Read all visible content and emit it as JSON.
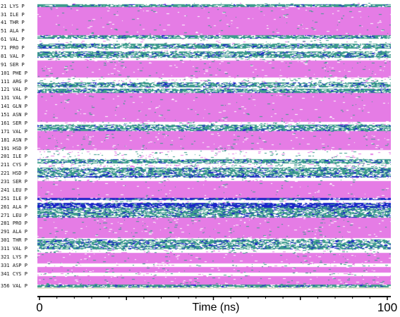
{
  "chart_data": {
    "type": "heatmap",
    "xlabel": "Time (ns)",
    "xlim": [
      0,
      100
    ],
    "xticks": [
      "0",
      "100"
    ],
    "colors": {
      "coil": "#ffffff",
      "turn": "#3c9b8c",
      "helix": "#e57ce5",
      "helix_310": "#1a24c8",
      "strand": "#e8e6cf"
    },
    "residue_labels": [
      {
        "residue": 21,
        "label": "21 LYS P"
      },
      {
        "residue": 31,
        "label": "31 ILE P"
      },
      {
        "residue": 41,
        "label": "41 THR P"
      },
      {
        "residue": 51,
        "label": "51 ALA P"
      },
      {
        "residue": 61,
        "label": "61 VAL P"
      },
      {
        "residue": 71,
        "label": "71 PRO P"
      },
      {
        "residue": 81,
        "label": "81 VAL P"
      },
      {
        "residue": 91,
        "label": "91 SER P"
      },
      {
        "residue": 101,
        "label": "101 PHE P"
      },
      {
        "residue": 111,
        "label": "111 ARG P"
      },
      {
        "residue": 121,
        "label": "121 VAL P"
      },
      {
        "residue": 131,
        "label": "131 VAL P"
      },
      {
        "residue": 141,
        "label": "141 GLN P"
      },
      {
        "residue": 151,
        "label": "151 ASN P"
      },
      {
        "residue": 161,
        "label": "161 SER P"
      },
      {
        "residue": 171,
        "label": "171 VAL P"
      },
      {
        "residue": 181,
        "label": "181 ASN P"
      },
      {
        "residue": 191,
        "label": "191 HSD P"
      },
      {
        "residue": 201,
        "label": "201 ILE P"
      },
      {
        "residue": 211,
        "label": "211 CYS P"
      },
      {
        "residue": 221,
        "label": "221 HSD P"
      },
      {
        "residue": 231,
        "label": "231 SER P"
      },
      {
        "residue": 241,
        "label": "241 LEU P"
      },
      {
        "residue": 251,
        "label": "251 ILE P"
      },
      {
        "residue": 261,
        "label": "261 ALA P"
      },
      {
        "residue": 271,
        "label": "271 LEU P"
      },
      {
        "residue": 281,
        "label": "281 PRO P"
      },
      {
        "residue": 291,
        "label": "291 ALA P"
      },
      {
        "residue": 301,
        "label": "301 THR P"
      },
      {
        "residue": 311,
        "label": "311 VAL P"
      },
      {
        "residue": 321,
        "label": "321 LYS P"
      },
      {
        "residue": 331,
        "label": "331 ASP P"
      },
      {
        "residue": 341,
        "label": "341 CYS P"
      },
      {
        "residue": 356,
        "label": "356 VAL P"
      }
    ],
    "residue_range": [
      17,
      359
    ],
    "segments": [
      {
        "start": 17,
        "end": 19,
        "state": "coil",
        "noise": 0.03
      },
      {
        "start": 19,
        "end": 22,
        "state": "turn",
        "noise": 0.25
      },
      {
        "start": 22,
        "end": 56,
        "state": "helix",
        "noise": 0.02
      },
      {
        "start": 56,
        "end": 60,
        "state": "turn",
        "noise": 0.35
      },
      {
        "start": 60,
        "end": 66,
        "state": "coil",
        "noise": 0.04
      },
      {
        "start": 66,
        "end": 72,
        "state": "turn",
        "noise": 0.35
      },
      {
        "start": 72,
        "end": 75,
        "state": "coil",
        "noise": 0.05
      },
      {
        "start": 75,
        "end": 83,
        "state": "turn",
        "noise": 0.4
      },
      {
        "start": 83,
        "end": 86,
        "state": "coil",
        "noise": 0.08
      },
      {
        "start": 86,
        "end": 106,
        "state": "helix",
        "noise": 0.03
      },
      {
        "start": 106,
        "end": 112,
        "state": "coil",
        "noise": 0.1
      },
      {
        "start": 112,
        "end": 118,
        "state": "turn",
        "noise": 0.45
      },
      {
        "start": 118,
        "end": 120,
        "state": "coil",
        "noise": 0.08
      },
      {
        "start": 120,
        "end": 125,
        "state": "turn",
        "noise": 0.35
      },
      {
        "start": 125,
        "end": 159,
        "state": "helix",
        "noise": 0.02
      },
      {
        "start": 159,
        "end": 163,
        "state": "coil",
        "noise": 0.1
      },
      {
        "start": 163,
        "end": 170,
        "state": "turn",
        "noise": 0.4
      },
      {
        "start": 170,
        "end": 193,
        "state": "helix",
        "noise": 0.03
      },
      {
        "start": 193,
        "end": 204,
        "state": "coil",
        "noise": 0.06
      },
      {
        "start": 204,
        "end": 209,
        "state": "turn",
        "noise": 0.35
      },
      {
        "start": 209,
        "end": 214,
        "state": "coil",
        "noise": 0.15
      },
      {
        "start": 214,
        "end": 218,
        "state": "turn",
        "noise": 0.4
      },
      {
        "start": 218,
        "end": 224,
        "state": "turn",
        "noise": 0.45
      },
      {
        "start": 224,
        "end": 226,
        "state": "helix_310",
        "noise": 0.4
      },
      {
        "start": 226,
        "end": 230,
        "state": "coil",
        "noise": 0.05
      },
      {
        "start": 230,
        "end": 250,
        "state": "helix",
        "noise": 0.02
      },
      {
        "start": 250,
        "end": 253,
        "state": "helix_310",
        "noise": 0.25
      },
      {
        "start": 253,
        "end": 256,
        "state": "coil",
        "noise": 0.1
      },
      {
        "start": 256,
        "end": 262,
        "state": "helix_310",
        "noise": 0.3
      },
      {
        "start": 262,
        "end": 270,
        "state": "turn",
        "noise": 0.4
      },
      {
        "start": 270,
        "end": 274,
        "state": "turn",
        "noise": 0.45
      },
      {
        "start": 274,
        "end": 298,
        "state": "helix",
        "noise": 0.03
      },
      {
        "start": 298,
        "end": 300,
        "state": "coil",
        "noise": 0.1
      },
      {
        "start": 300,
        "end": 312,
        "state": "turn",
        "noise": 0.45
      },
      {
        "start": 312,
        "end": 316,
        "state": "coil",
        "noise": 0.1
      },
      {
        "start": 316,
        "end": 329,
        "state": "helix",
        "noise": 0.03
      },
      {
        "start": 329,
        "end": 333,
        "state": "coil",
        "noise": 0.05
      },
      {
        "start": 333,
        "end": 340,
        "state": "helix",
        "noise": 0.03
      },
      {
        "start": 340,
        "end": 344,
        "state": "coil",
        "noise": 0.06
      },
      {
        "start": 344,
        "end": 354,
        "state": "helix",
        "noise": 0.03
      },
      {
        "start": 354,
        "end": 357,
        "state": "turn",
        "noise": 0.3
      },
      {
        "start": 357,
        "end": 359,
        "state": "strand",
        "noise": 0.05
      }
    ]
  }
}
